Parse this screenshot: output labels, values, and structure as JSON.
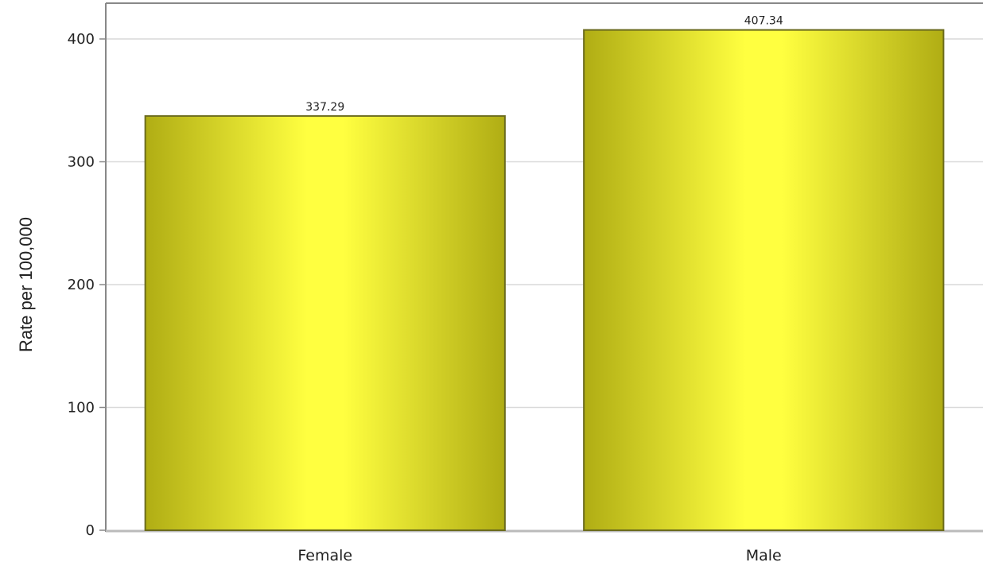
{
  "chart_data": {
    "type": "bar",
    "categories": [
      "Female",
      "Male"
    ],
    "values": [
      337.29,
      407.34
    ],
    "data_labels": [
      "337.29",
      "407.34"
    ],
    "title": "",
    "xlabel": "",
    "ylabel": "Rate per 100,000",
    "ylim": [
      0,
      430
    ],
    "yticks": [
      "0",
      "100",
      "200",
      "300",
      "400"
    ],
    "ytick_values": [
      0,
      100,
      200,
      300,
      400
    ],
    "grid": true,
    "legend": "none",
    "colors": {
      "bar_edge": "#6b6b1e",
      "bar_dark": "#b0ad14",
      "bar_light": "#ffff40",
      "grid": "#d9d9d9",
      "axis": "#888888"
    }
  }
}
